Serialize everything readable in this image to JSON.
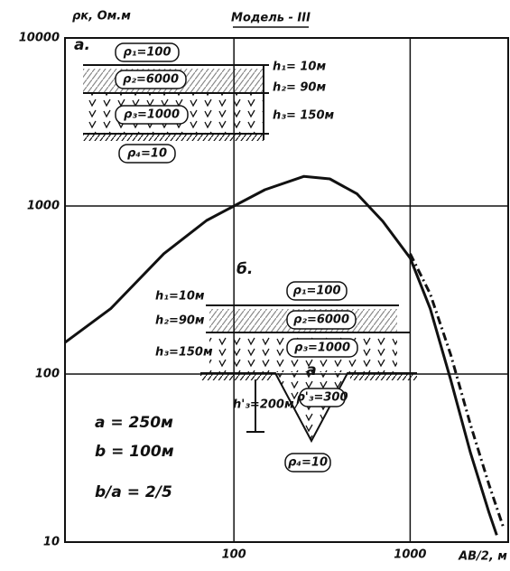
{
  "chart_data": {
    "type": "line",
    "title": "Модель - III",
    "y_label": "ρк, Ом.м",
    "x_label": "AB/2, м",
    "xscale": "log",
    "yscale": "log",
    "grid": true,
    "xlim": [
      11,
      3600
    ],
    "ylim": [
      10,
      10000
    ],
    "xticks": [
      100,
      1000
    ],
    "yticks": [
      10,
      100,
      1000,
      10000
    ],
    "series": [
      {
        "color": "#111111",
        "dash": "solid",
        "x": [
          11,
          20,
          40,
          70,
          100,
          150,
          250,
          350,
          500,
          700,
          1000,
          1300,
          1700,
          2200,
          2800,
          3100
        ],
        "values": [
          154,
          245,
          520,
          820,
          1000,
          1250,
          1500,
          1450,
          1180,
          810,
          490,
          245,
          92,
          34,
          15,
          11
        ]
      },
      {
        "color": "#111111",
        "dash": "dashdot",
        "x": [
          1000,
          1300,
          1700,
          2200,
          2800,
          3400
        ],
        "values": [
          520,
          300,
          130,
          50,
          22,
          12
        ]
      }
    ],
    "annotations": {
      "a": [
        "а.",
        "ρ₁=100",
        "ρ₂=6000",
        "ρ₃=1000",
        "ρ₄=10",
        "h₁= 10м",
        "h₂= 90м",
        "h₃= 150м"
      ],
      "b": [
        "б.",
        "h₁=10м",
        "h₂=90м",
        "h₃=150м",
        "h'₃=200м",
        "ρ₁=100",
        "ρ₂=6000",
        "ρ₃=1000",
        "a",
        "ρ'₃=300",
        "ρ₄=10"
      ],
      "params": [
        "a = 250м",
        "b = 100м",
        "b/a = 2/5"
      ]
    }
  }
}
